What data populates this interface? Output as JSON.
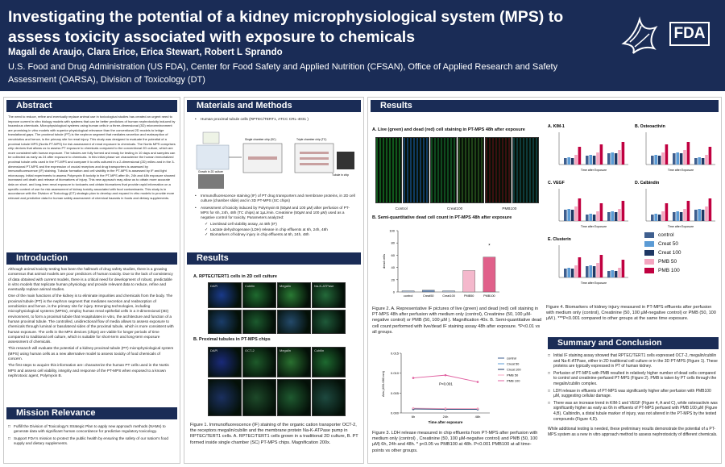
{
  "header": {
    "title": "Investigating the potential of a kidney microphysiological system (MPS) to assess toxicity associated with exposure to chemicals",
    "authors": "Magali de Araujo, Clara Erice, Erica Stewart, Robert L Sprando",
    "affiliation": "U.S. Food and Drug Administration (US FDA), Center for Food Safety and Applied Nutrition (CFSAN), Office of Applied Research and Safety Assessment (OARSA), Division of Toxicology (DT)",
    "logo_fda": "FDA",
    "logo_hhs_icon": "hhs-eagle-icon"
  },
  "abstract": {
    "heading": "Abstract",
    "text": "The need to reduce, refine and eventually replace animal use in toxicological studies has created an urgent need to improve current in vitro biology models with systems that can be better predictors of human nephrotoxicity induced by hazardous chemicals. Microphysiological systems using human cells in a three-dimensional (3D) microenvironment are promising in vitro models with superior physiological relevance than the conventional 2D models to bridge translational gaps. The proximal tubule (PT) is the nephron segment that mediates secretion and reabsorption of xenobiotics and hence, is the primary site for renal injury. This study was designed to evaluate the potential of a proximal tubule MPS (Nortis PT-MPS) for risk assessment of renal exposure to chemicals. The Nortis MPS comprises chip devices that allows us to assess PT exposure to chemicals compared to the conventional 2D culture, which are more consistent with human exposure. The tubules are fully formed and ready for testing in 10 days and samples can be collected as early as 24 after exposure to chemicals. In this initial phase we characterize the human immortalized proximal tubule cells used in the PT-MPS and compare it to cells cultured in a 2-dimensional (2D) milieu and in the 3-dimensional PT-MPS and the expression of crucial receptors and drug transporters is assessed by immunofluorescence (IF) staining. Tubular formation and cell viability in the PT-MPS is assessed by IF and light microscopy. Initial experiments to assess Polymyxin B toxicity in the PT-MPS after 6h, 24h and 48h exposure showed increased cell death and release of biomarkers of injury. This new approach may allow us to obtain more accurate data on short- and long-term renal exposure to toxicants and obtain biomarkers that provide rapid information on a specific context of use for risk assessment of kidney toxicity associated with food contaminants. This study is in accordance with the Division of Toxicology (DT) strategic plan to develop and expand in vitro models to provide more relevant and predictive data for human safety assessment of chemical hazards in foods and dietary supplements."
  },
  "introduction": {
    "heading": "Introduction",
    "paragraphs": [
      "Although animal toxicity testing has been the hallmark of drug safety studies, there is a growing consensus that animal models are poor predictors of human toxicity. Due to the lack of consistency of data obtained with current models, there is a critical need for development of robust, predictable in vitro models that replicate human physiology and provide relevant data to reduce, refine and eventually replace animal studies.",
      "One of the main functions of the kidney is to eliminate impurities and chemicals from the body. The proximal tubule (PT) is the nephron segment that mediates secretion and reabsorption of xenobiotics and hence, is the primary site for injury. Emerging technologies, including microphysiological systems (MPSs), employ human renal epithelial cells in a 3-dimensional (3D) environment, to form a proximal tubule that recapitulates in vitro, the architecture and function of a human proximal tubule. The controlled, unidirectional flow of media allows to assess exposure to chemicals through luminal or basolateral sides of the proximal tubule, which is more consistent with human exposure. The cells in the MPS devices (chips) are viable for longer periods of time compared to traditional cell culture, which is suitable for short-term and long-term exposure assessment of chemicals.",
      "This research will evaluate the potential of a kidney proximal tubule (PT) microphysiological system (MPS) using human cells as a new alternative model to assess toxicity of food chemicals of concern.",
      "The first steps to acquire this information are: characterize the human PT cells used in the Nortis MPS and assess cell viability, integrity and response of the PT-MPS when exposed to a known nephrotoxic agent, Polymyxin B."
    ]
  },
  "mission": {
    "heading": "Mission Relevance",
    "items": [
      "Fulfill the Division of Toxicology's Strategic Plan to apply new approach methods (NAMs) to generate data with significant human concordance for predictive regulatory toxicology.",
      "Support FDA's mission to protect the public health by ensuring the safety of our nation's food supply and dietary supplements."
    ]
  },
  "methods": {
    "heading": "Materials and Methods",
    "bullet1": "Human proximal tubule cells (RPTEC/TERT1, ATCC CRL-4031 )",
    "diagram": {
      "label1": "Single chamber chip (SC)",
      "label2": "Triple chamber chip (TC)",
      "label3": "Growth in 2D culture",
      "label4": "Tubule in chip"
    },
    "bullet2": "Immunofluorescence staining  (IF) of PT drug transporters and membrane proteins, in 2D cell culture (chamber slide) and in 3D PT-MPS (SC chips)",
    "bullet3": "Assessment of toxicity induced by Polymyxin B (50µM and 100 µM)  after perfusion of PT-MPS for 6h, 24h, 48h (TC chips) at 1µL/min. Creatinine (50µM and 100 µM) used as a negative control for toxicity. Parameters analyzed:",
    "checks": [
      "Live/dead cell viability assay, at 48h (IF)",
      "Lactate dehydrogenase (LDH) release in chip effluents at 6h, 24h, 48h",
      "Biomarkers of kidney injury in chip effluents at 6h, 24h, 48h"
    ]
  },
  "results_mid": {
    "heading": "Results",
    "panelA": "A. RPTEC/TERT1 cells in 2D cell culture",
    "panelB": "B. Proximal tubules in PT-MPS chips",
    "caption": "Figure 1. Immunofluorescence (IF) staining of the organic cation transporter OCT-2,  the receptors megalin/cubilin and the membrane protein Na-K-ATPase pump in RPTEC/TERT1 cells. A. RPTEC/TERT1 cells grown in a traditional 2D culture, B. PT formed inside single chamber (SC) PT-MPS chips. Magnification 200x.",
    "ifLabelsA": [
      "DAPI",
      "Cubilin",
      "Megalin",
      "Na-K-ATPase"
    ],
    "ifLabelsB": [
      "DAPI",
      "OCT-2",
      "Megalin",
      "Cubilin"
    ]
  },
  "results_right": {
    "heading": "Results",
    "panelA": "A. Live (green) and dead (red) cell staining in PT-MPS 48h after exposure",
    "liveLabels": [
      "Control",
      "Creat100",
      "PMB100"
    ],
    "panelB": "B. Semi-quantitative dead cell count in PT-MPS 48h after exposure",
    "fig2": "Figure 2. A. Representative IF pictures of live (green) and dead (red) cell staining in PT-MPS 48h after perfusion with medium only (control), Creatinine (50, 100 µM-negative control) or PMB (50, 100 µM ). Magnification 40x. B. Semi-quantitative dead cell count performed with live/dead IF staining assay 48h after exposure. *P<0.01 vs all groups.",
    "fig3": "Figure 3. LDH release measured in chip effluents from PT-MPS after perfusion with medium only (control) , Creatinine (50, 100 µM-negative control) and PMB (50, 100 µM) 6h, 24h and 48h. * p<0.05 vs PMB100 at 48h. P<0.001 PMB100  at all time-points vs other groups.",
    "fig4": "Figure 4. Biomarkers of kidney injury measured in PT-MPS effluents after perfusion with medium only (control), Creatinine (50, 100 µM-negative control) or PMB (50, 100 µM ). ***P<0.001 compared to other groups at the same time exposure.",
    "biomarkerPanels": [
      "A. KIM-1",
      "B. Osteoactivin",
      "C. VEGF",
      "D. Calbindin",
      "E. Clusterin"
    ],
    "xAxisText": "Time after Exposure"
  },
  "summary": {
    "heading": "Summary and Conclusion",
    "items": [
      "Initial IF staining assay showed that RPTEC/TERT1 cells expressed OCT-2, megalin/cubilin and Na-K-ATPase, either in 2D traditional cell culture or in the 3D PT-MPS (Figure 1). These proteins are typically expressed in PT of human kidney.",
      "Perfusion of PT-MPS with PMB resulted in relatively higher number of dead cells compared to control and creatinine-perfused PT-MPS (Figure 2). PMB is taken by PT cells through the megalin/cubilin complex.",
      "LDH release in effluents of PT-MPS was significantly higher after perfusion with PMB100 µM, suggesting cellular damage.",
      "There was an increase trend in KIM-1 and VEGF (Figure 4, A and C), while osteoactivin was significantly higher as early as 6h in effluents of PT-MPS perfused with PMB 100 µM (Figure 4,B). Calbindin, a distal tubule marker of injury, was not altered in the PT-MPS by the tested compounds (Figure 4,D)."
    ],
    "closing": "While additional testing is needed, these preliminary results demonstrate the potential of a PT-MPS system as a new in vitro approach method to assess nephrotoxicity of different chemicals."
  },
  "legend": {
    "items": [
      {
        "label": "control",
        "color": "#3f5f8f"
      },
      {
        "label": "Creat 50",
        "color": "#5b9bd5"
      },
      {
        "label": "Creat 100",
        "color": "#1f3864"
      },
      {
        "label": "PMB 50",
        "color": "#f4a6c0"
      },
      {
        "label": "PMB 100",
        "color": "#c00040"
      }
    ]
  },
  "chart_data": [
    {
      "type": "bar",
      "title": "",
      "categories": [
        "control",
        "Creat50",
        "Creat100",
        "PMB50",
        "PMB100"
      ],
      "values": [
        2,
        3,
        2,
        35,
        57
      ],
      "ylabel": "dead cells",
      "ylim": [
        0,
        100
      ],
      "yticks": [
        0,
        20,
        40,
        60,
        80,
        100
      ],
      "annotation": "*"
    },
    {
      "type": "line",
      "x": [
        "6h",
        "24h",
        "48h"
      ],
      "xlabel": "Time after exposure",
      "ylabel": "Abs (490-680 nm)",
      "ylim": [
        0.0,
        0.15
      ],
      "yticks": [
        "0.000",
        "0.005",
        "0.010",
        "0.015"
      ],
      "annotation": "P<0.001",
      "series": [
        {
          "name": "control",
          "values": [
            0.01,
            0.009,
            0.009
          ],
          "color": "#3f5f8f"
        },
        {
          "name": "Creat 50",
          "values": [
            0.011,
            0.011,
            0.01
          ],
          "color": "#5b9bd5"
        },
        {
          "name": "Creat 100",
          "values": [
            0.01,
            0.01,
            0.01
          ],
          "color": "#1f3864"
        },
        {
          "name": "PMB 50",
          "values": [
            0.012,
            0.011,
            0.011
          ],
          "color": "#f4a6c0"
        },
        {
          "name": "PMB 100",
          "values": [
            0.088,
            0.095,
            0.078
          ],
          "color": "#e060a0"
        }
      ]
    }
  ]
}
